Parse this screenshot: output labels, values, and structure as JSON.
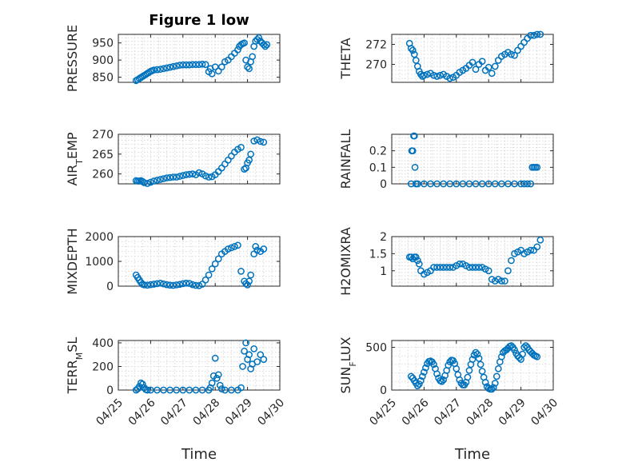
{
  "figure": {
    "title": "Figure 1 low"
  },
  "chart_data": [
    {
      "id": "pressure",
      "type": "scatter",
      "title": "Figure 1 low",
      "ylabel": "PRESSURE",
      "xlabel": "",
      "ylim": [
        835,
        975
      ],
      "yticks": [
        850,
        900,
        950
      ],
      "xlim": [
        "04/25",
        "04/30"
      ],
      "xticks": [
        "04/25",
        "04/26",
        "04/27",
        "04/28",
        "04/29",
        "04/30"
      ],
      "grid": true,
      "series": [
        {
          "x": [
            0.55,
            0.6,
            0.65,
            0.7,
            0.75,
            0.8,
            0.85,
            0.9,
            0.95,
            1.0,
            1.05,
            1.1,
            1.2,
            1.3,
            1.4,
            1.5,
            1.6,
            1.7,
            1.8,
            1.9,
            2.0,
            2.1,
            2.2,
            2.3,
            2.4,
            2.5,
            2.6,
            2.7,
            2.8,
            2.85,
            2.9,
            3.0,
            3.1,
            3.2,
            3.3,
            3.4,
            3.5,
            3.6,
            3.7,
            3.75,
            3.8,
            3.85,
            3.9,
            3.95,
            4.0,
            4.05,
            4.1,
            4.15,
            4.2,
            4.25,
            4.3,
            4.35,
            4.4,
            4.45,
            4.5,
            4.55,
            4.6
          ],
          "y": [
            840,
            843,
            846,
            849,
            852,
            855,
            858,
            861,
            864,
            867,
            869,
            871,
            872,
            873,
            875,
            877,
            879,
            881,
            883,
            885,
            886,
            886,
            886,
            887,
            887,
            887,
            888,
            887,
            866,
            875,
            860,
            880,
            868,
            880,
            895,
            900,
            910,
            920,
            930,
            940,
            945,
            948,
            950,
            900,
            880,
            875,
            895,
            910,
            940,
            955,
            960,
            965,
            955,
            950,
            945,
            940,
            945
          ]
        }
      ]
    },
    {
      "id": "theta",
      "type": "scatter",
      "ylabel": "THETA",
      "xlabel": "",
      "ylim": [
        268.2,
        273
      ],
      "yticks": [
        270,
        272
      ],
      "xlim": [
        "04/25",
        "04/30"
      ],
      "xticks": [
        "04/25",
        "04/26",
        "04/27",
        "04/28",
        "04/29",
        "04/30"
      ],
      "grid": true,
      "series": [
        {
          "x": [
            0.55,
            0.6,
            0.65,
            0.7,
            0.75,
            0.8,
            0.85,
            0.9,
            0.95,
            1.0,
            1.1,
            1.2,
            1.3,
            1.4,
            1.5,
            1.6,
            1.7,
            1.8,
            1.9,
            2.0,
            2.1,
            2.2,
            2.3,
            2.4,
            2.5,
            2.6,
            2.7,
            2.8,
            2.9,
            3.0,
            3.1,
            3.2,
            3.3,
            3.4,
            3.5,
            3.6,
            3.7,
            3.8,
            3.9,
            4.0,
            4.1,
            4.2,
            4.3,
            4.4,
            4.5,
            4.6
          ],
          "y": [
            272.1,
            271.6,
            271.4,
            271.0,
            270.4,
            269.8,
            269.3,
            269.0,
            268.8,
            268.9,
            269.0,
            269.1,
            268.9,
            268.8,
            268.9,
            269.0,
            268.8,
            268.6,
            268.7,
            268.9,
            269.2,
            269.4,
            269.6,
            269.9,
            270.2,
            269.5,
            270.0,
            270.3,
            269.4,
            269.7,
            269.1,
            269.8,
            270.4,
            270.8,
            271.0,
            271.2,
            271.0,
            270.9,
            271.4,
            271.8,
            272.2,
            272.6,
            272.9,
            272.9,
            273.0,
            273.0
          ]
        }
      ]
    },
    {
      "id": "air_temp",
      "type": "scatter",
      "ylabel": "AIR_TEMP",
      "xlabel": "",
      "ylim": [
        257.5,
        270
      ],
      "yticks": [
        260,
        265,
        270
      ],
      "xlim": [
        "04/25",
        "04/30"
      ],
      "xticks": [
        "04/25",
        "04/26",
        "04/27",
        "04/28",
        "04/29",
        "04/30"
      ],
      "grid": true,
      "series": [
        {
          "x": [
            0.55,
            0.6,
            0.65,
            0.7,
            0.75,
            0.8,
            0.9,
            1.0,
            1.1,
            1.2,
            1.3,
            1.4,
            1.5,
            1.6,
            1.7,
            1.8,
            1.9,
            2.0,
            2.1,
            2.2,
            2.3,
            2.4,
            2.5,
            2.6,
            2.7,
            2.8,
            2.9,
            3.0,
            3.1,
            3.2,
            3.3,
            3.4,
            3.5,
            3.6,
            3.7,
            3.8,
            3.9,
            3.95,
            4.0,
            4.05,
            4.1,
            4.2,
            4.3,
            4.4,
            4.5
          ],
          "y": [
            258.3,
            258.2,
            258.2,
            258.3,
            258.1,
            257.8,
            257.6,
            257.9,
            258.2,
            258.4,
            258.6,
            258.8,
            259.0,
            259.1,
            259.2,
            259.2,
            259.4,
            259.6,
            259.8,
            259.9,
            260.0,
            259.8,
            260.3,
            260.0,
            259.5,
            259.2,
            259.3,
            259.8,
            260.6,
            261.5,
            262.5,
            263.5,
            264.5,
            265.5,
            266.2,
            266.7,
            261.2,
            261.5,
            262.8,
            263.5,
            265.0,
            268.3,
            268.6,
            268.2,
            268.0
          ]
        }
      ]
    },
    {
      "id": "rainfall",
      "type": "scatter",
      "ylabel": "RAINFALL",
      "xlabel": "",
      "ylim": [
        0,
        0.3
      ],
      "yticks": [
        0,
        0.1,
        0.2
      ],
      "ytick_labels": [
        "0",
        "0.1",
        "0.2"
      ],
      "xlim": [
        "04/25",
        "04/30"
      ],
      "xticks": [
        "04/25",
        "04/26",
        "04/27",
        "04/28",
        "04/29",
        "04/30"
      ],
      "grid": true,
      "series": [
        {
          "x": [
            0.6,
            0.62,
            0.65,
            0.68,
            0.7,
            0.72,
            0.75,
            0.8,
            1.0,
            1.2,
            1.4,
            1.6,
            1.8,
            2.0,
            2.2,
            2.4,
            2.6,
            2.8,
            3.0,
            3.2,
            3.4,
            3.6,
            3.8,
            4.0,
            4.1,
            4.2,
            4.3,
            4.35,
            4.4,
            4.45,
            4.5
          ],
          "y": [
            0.0,
            0.2,
            0.2,
            0.29,
            0.29,
            0.1,
            0.0,
            0.0,
            0.0,
            0.0,
            0.0,
            0.0,
            0.0,
            0.0,
            0.0,
            0.0,
            0.0,
            0.0,
            0.0,
            0.0,
            0.0,
            0.0,
            0.0,
            0.0,
            0.0,
            0.0,
            0.0,
            0.1,
            0.1,
            0.1,
            0.1
          ]
        }
      ]
    },
    {
      "id": "mixdepth",
      "type": "scatter",
      "ylabel": "MIXDEPTH",
      "xlabel": "",
      "ylim": [
        0,
        2000
      ],
      "yticks": [
        0,
        1000,
        2000
      ],
      "xlim": [
        "04/25",
        "04/30"
      ],
      "xticks": [
        "04/25",
        "04/26",
        "04/27",
        "04/28",
        "04/29",
        "04/30"
      ],
      "grid": true,
      "series": [
        {
          "x": [
            0.55,
            0.6,
            0.65,
            0.7,
            0.75,
            0.8,
            0.9,
            1.0,
            1.1,
            1.2,
            1.3,
            1.4,
            1.5,
            1.6,
            1.7,
            1.8,
            1.9,
            2.0,
            2.1,
            2.2,
            2.3,
            2.4,
            2.5,
            2.6,
            2.7,
            2.8,
            2.9,
            3.0,
            3.1,
            3.2,
            3.3,
            3.4,
            3.5,
            3.6,
            3.7,
            3.8,
            3.9,
            3.95,
            4.0,
            4.05,
            4.1,
            4.2,
            4.25,
            4.3,
            4.4,
            4.5
          ],
          "y": [
            450,
            350,
            250,
            150,
            80,
            50,
            40,
            60,
            80,
            100,
            120,
            90,
            60,
            40,
            30,
            50,
            70,
            100,
            120,
            110,
            60,
            30,
            20,
            80,
            250,
            450,
            700,
            900,
            1100,
            1300,
            1400,
            1500,
            1550,
            1600,
            1650,
            600,
            200,
            100,
            50,
            200,
            450,
            1300,
            1600,
            1450,
            1400,
            1500
          ]
        }
      ]
    },
    {
      "id": "h2omixra",
      "type": "scatter",
      "ylabel": "H2OMIXRA",
      "xlabel": "",
      "ylim": [
        0.55,
        2
      ],
      "yticks": [
        1,
        1.5,
        2
      ],
      "xlim": [
        "04/25",
        "04/30"
      ],
      "xticks": [
        "04/25",
        "04/26",
        "04/27",
        "04/28",
        "04/29",
        "04/30"
      ],
      "grid": true,
      "series": [
        {
          "x": [
            0.55,
            0.6,
            0.65,
            0.7,
            0.75,
            0.8,
            0.85,
            0.9,
            1.0,
            1.1,
            1.2,
            1.3,
            1.4,
            1.5,
            1.6,
            1.7,
            1.8,
            1.9,
            2.0,
            2.1,
            2.2,
            2.3,
            2.4,
            2.5,
            2.6,
            2.7,
            2.8,
            2.9,
            3.0,
            3.1,
            3.2,
            3.3,
            3.4,
            3.5,
            3.6,
            3.7,
            3.8,
            3.9,
            4.0,
            4.1,
            4.2,
            4.3,
            4.4,
            4.5,
            4.6
          ],
          "y": [
            1.4,
            1.4,
            1.35,
            1.4,
            1.4,
            1.3,
            1.2,
            1.0,
            0.9,
            0.95,
            1.0,
            1.1,
            1.1,
            1.1,
            1.1,
            1.1,
            1.1,
            1.1,
            1.15,
            1.2,
            1.2,
            1.15,
            1.1,
            1.1,
            1.1,
            1.1,
            1.1,
            1.05,
            1.0,
            0.75,
            0.7,
            0.75,
            0.7,
            0.7,
            1.0,
            1.3,
            1.5,
            1.55,
            1.6,
            1.5,
            1.55,
            1.6,
            1.6,
            1.7,
            1.9
          ]
        }
      ]
    },
    {
      "id": "terr_msl",
      "type": "scatter",
      "ylabel": "TERR_MSL",
      "xlabel": "Time",
      "ylim": [
        0,
        420
      ],
      "yticks": [
        0,
        200,
        400
      ],
      "xlim": [
        "04/25",
        "04/30"
      ],
      "xticks": [
        "04/25",
        "04/26",
        "04/27",
        "04/28",
        "04/29",
        "04/30"
      ],
      "grid": true,
      "series": [
        {
          "x": [
            0.55,
            0.6,
            0.65,
            0.7,
            0.75,
            0.8,
            0.85,
            0.9,
            1.0,
            1.2,
            1.4,
            1.6,
            1.8,
            2.0,
            2.2,
            2.4,
            2.6,
            2.8,
            2.85,
            2.9,
            2.95,
            3.0,
            3.05,
            3.1,
            3.15,
            3.2,
            3.3,
            3.5,
            3.7,
            3.8,
            3.85,
            3.9,
            3.95,
            4.0,
            4.05,
            4.1,
            4.15,
            4.2,
            4.3,
            4.4,
            4.5
          ],
          "y": [
            0,
            10,
            30,
            60,
            50,
            20,
            5,
            0,
            0,
            0,
            0,
            0,
            0,
            0,
            0,
            0,
            0,
            0,
            20,
            60,
            120,
            270,
            100,
            130,
            40,
            10,
            0,
            0,
            0,
            20,
            200,
            330,
            400,
            260,
            300,
            180,
            220,
            350,
            240,
            300,
            260
          ]
        }
      ]
    },
    {
      "id": "sun_flux",
      "type": "scatter",
      "ylabel": "SUN_FLUX",
      "xlabel": "Time",
      "ylim": [
        0,
        580
      ],
      "yticks": [
        0,
        500
      ],
      "xlim": [
        "04/25",
        "04/30"
      ],
      "xticks": [
        "04/25",
        "04/26",
        "04/27",
        "04/28",
        "04/29",
        "04/30"
      ],
      "grid": true,
      "series": [
        {
          "x": [
            0.6,
            0.65,
            0.7,
            0.75,
            0.8,
            0.85,
            0.9,
            0.95,
            1.0,
            1.05,
            1.1,
            1.15,
            1.2,
            1.25,
            1.3,
            1.35,
            1.4,
            1.45,
            1.5,
            1.55,
            1.6,
            1.65,
            1.7,
            1.75,
            1.8,
            1.85,
            1.9,
            1.95,
            2.0,
            2.05,
            2.1,
            2.15,
            2.2,
            2.25,
            2.3,
            2.35,
            2.4,
            2.45,
            2.5,
            2.55,
            2.6,
            2.65,
            2.7,
            2.75,
            2.8,
            2.85,
            2.9,
            2.95,
            3.0,
            3.05,
            3.1,
            3.15,
            3.2,
            3.25,
            3.3,
            3.35,
            3.4,
            3.45,
            3.5,
            3.55,
            3.6,
            3.65,
            3.7,
            3.75,
            3.8,
            3.85,
            3.9,
            3.95,
            4.0,
            4.05,
            4.1,
            4.15,
            4.2,
            4.25,
            4.3,
            4.35,
            4.4,
            4.45,
            4.5
          ],
          "y": [
            160,
            140,
            110,
            80,
            50,
            70,
            110,
            160,
            210,
            260,
            310,
            335,
            340,
            330,
            300,
            250,
            190,
            140,
            110,
            100,
            120,
            170,
            230,
            290,
            330,
            350,
            345,
            310,
            250,
            180,
            120,
            80,
            60,
            60,
            90,
            150,
            230,
            300,
            360,
            410,
            440,
            420,
            370,
            300,
            220,
            150,
            90,
            40,
            20,
            10,
            10,
            30,
            80,
            160,
            250,
            330,
            390,
            440,
            460,
            470,
            490,
            510,
            520,
            500,
            470,
            430,
            400,
            380,
            360,
            420,
            500,
            520,
            500,
            470,
            450,
            430,
            410,
            400,
            390
          ]
        }
      ]
    }
  ]
}
